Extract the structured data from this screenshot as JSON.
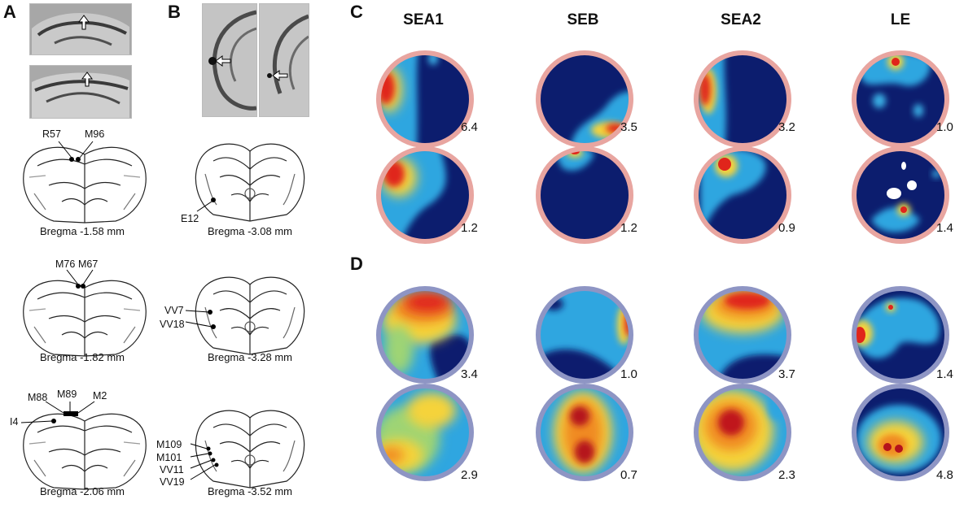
{
  "panels": {
    "a": "A",
    "b": "B",
    "c": "C",
    "d": "D"
  },
  "columns": [
    "SEA1",
    "SEB",
    "SEA2",
    "LE"
  ],
  "section_a": [
    {
      "bregma": "Bregma -1.58 mm",
      "labels": [
        "R57",
        "M96"
      ]
    },
    {
      "bregma": "Bregma -1.82 mm",
      "labels": [
        "M76",
        "M67"
      ]
    },
    {
      "bregma": "Bregma -2.06 mm",
      "labels": [
        "M88",
        "M89",
        "M2",
        "I4"
      ]
    }
  ],
  "section_b": [
    {
      "bregma": "Bregma -3.08 mm",
      "labels": [
        "E12"
      ]
    },
    {
      "bregma": "Bregma -3.28 mm",
      "labels": [
        "VV7",
        "VV18"
      ]
    },
    {
      "bregma": "Bregma -3.52 mm",
      "labels": [
        "M109",
        "M101",
        "VV11",
        "VV19"
      ]
    }
  ],
  "panel_c_peaks": [
    [
      "6.4",
      "3.5",
      "3.2",
      "1.0"
    ],
    [
      "1.2",
      "1.2",
      "0.9",
      "1.4"
    ]
  ],
  "panel_d_peaks": [
    [
      "3.4",
      "1.0",
      "3.7",
      "1.4"
    ],
    [
      "2.9",
      "0.7",
      "2.3",
      "4.8"
    ]
  ],
  "colors": {
    "ring_c": "#e8a5a0",
    "ring_d": "#8e95c4",
    "deep": "#0c1d6e",
    "mid": "#2fa6e0",
    "warm": "#e0251b"
  }
}
